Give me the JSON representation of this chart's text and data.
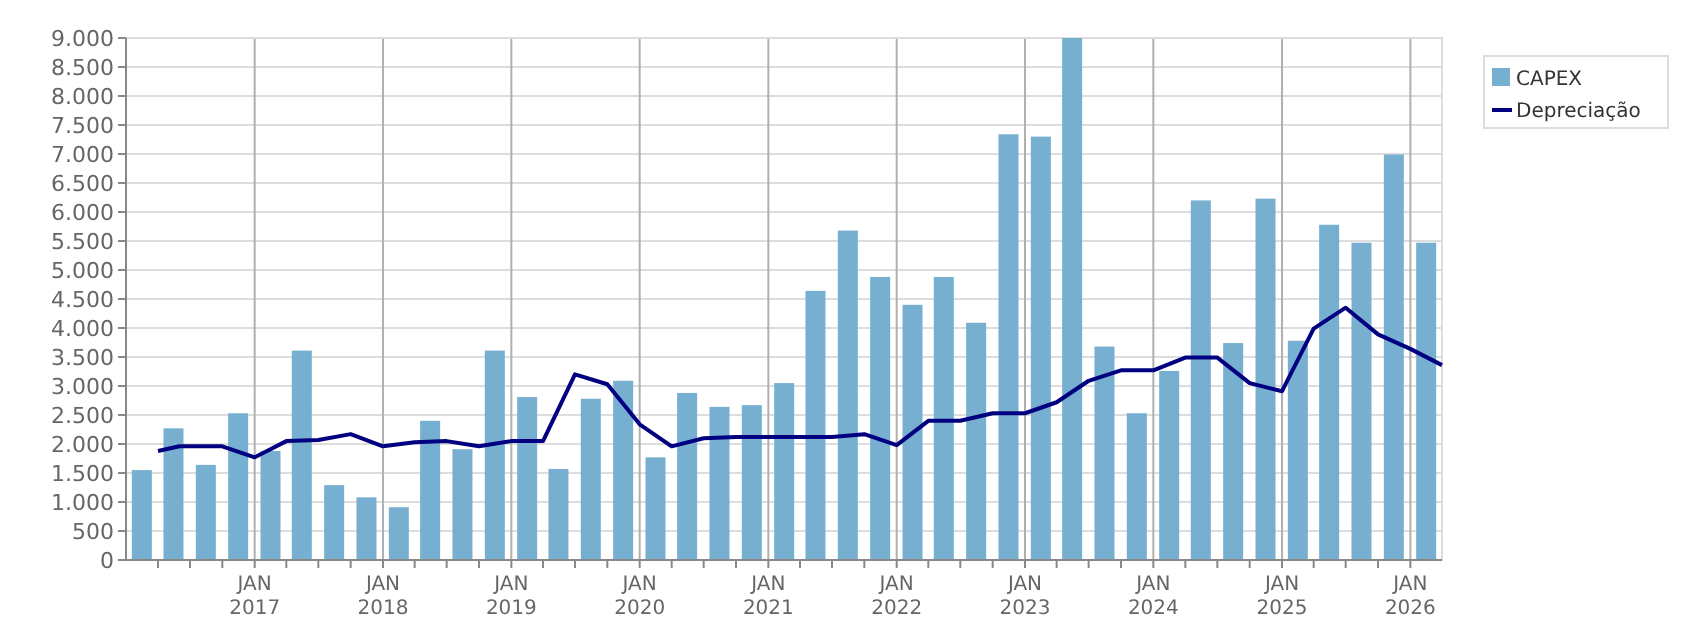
{
  "chart_data": {
    "type": "bar",
    "x": [
      "2016-02-15",
      "2016-05-15",
      "2016-08-15",
      "2016-11-15",
      "2017-02-15",
      "2017-05-15",
      "2017-08-15",
      "2017-11-15",
      "2018-02-15",
      "2018-05-15",
      "2018-08-15",
      "2018-11-15",
      "2019-02-15",
      "2019-05-15",
      "2019-08-15",
      "2019-11-15",
      "2020-02-15",
      "2020-05-15",
      "2020-08-15",
      "2020-11-15",
      "2021-02-15",
      "2021-05-15",
      "2021-08-15",
      "2021-11-15",
      "2022-02-15",
      "2022-05-15",
      "2022-08-15",
      "2022-11-15",
      "2023-02-15",
      "2023-05-15",
      "2023-08-15",
      "2023-11-15",
      "2024-02-15",
      "2024-05-15",
      "2024-08-15",
      "2024-11-15",
      "2025-02-15",
      "2025-05-15",
      "2025-08-15",
      "2025-11-15",
      "2026-02-15"
    ],
    "series": [
      {
        "name": "CAPEX",
        "color": "#77afd1",
        "values": [
          1550,
          2270,
          1640,
          2530,
          1880,
          3610,
          1290,
          1080,
          910,
          2400,
          1910,
          3610,
          2810,
          1570,
          2780,
          3090,
          1770,
          2880,
          2640,
          2670,
          3050,
          4640,
          5680,
          4880,
          4400,
          4880,
          4090,
          7340,
          7300,
          9000,
          3680,
          2530,
          3260,
          6200,
          3740,
          6230,
          3780,
          5780,
          5470,
          6990,
          5470
        ]
      },
      {
        "name": "Depreciação",
        "type": "line",
        "color": "#000080",
        "x": [
          "2016-04-01",
          "2016-06-01",
          "2016-10-01",
          "2017-01-01",
          "2017-04-01",
          "2017-07-01",
          "2017-10-01",
          "2018-01-01",
          "2018-04-01",
          "2018-07-01",
          "2018-10-01",
          "2019-01-01",
          "2019-04-01",
          "2019-07-01",
          "2019-10-01",
          "2020-01-01",
          "2020-04-01",
          "2020-07-01",
          "2020-10-01",
          "2021-01-01",
          "2021-04-01",
          "2021-07-01",
          "2021-10-01",
          "2022-01-01",
          "2022-04-01",
          "2022-07-01",
          "2022-10-01",
          "2023-01-01",
          "2023-04-01",
          "2023-07-01",
          "2023-10-01",
          "2024-01-01",
          "2024-04-01",
          "2024-07-01",
          "2024-10-01",
          "2025-01-01",
          "2025-04-01",
          "2025-07-01",
          "2025-10-01",
          "2026-01-01",
          "2026-04-01"
        ],
        "values": [
          1880,
          1960,
          1960,
          1770,
          2050,
          2070,
          2170,
          1960,
          2030,
          2050,
          1960,
          2050,
          2050,
          3200,
          3030,
          2340,
          1960,
          2100,
          2120,
          2120,
          2120,
          2120,
          2170,
          1980,
          2400,
          2400,
          2530,
          2530,
          2720,
          3090,
          3270,
          3270,
          3490,
          3490,
          3050,
          2910,
          3990,
          4350,
          3890,
          3640,
          3360
        ]
      }
    ],
    "xlim": [
      "2016-01-01",
      "2026-04-01"
    ],
    "xticks": [
      {
        "value": "2016-04-01",
        "label": null
      },
      {
        "value": "2016-07-01",
        "label": null
      },
      {
        "value": "2016-10-01",
        "label": null
      },
      {
        "value": "2017-01-01",
        "label": "JAN 2017"
      },
      {
        "value": "2017-04-01",
        "label": null
      },
      {
        "value": "2017-07-01",
        "label": null
      },
      {
        "value": "2017-10-01",
        "label": null
      },
      {
        "value": "2018-01-01",
        "label": "JAN 2018"
      },
      {
        "value": "2018-04-01",
        "label": null
      },
      {
        "value": "2018-07-01",
        "label": null
      },
      {
        "value": "2018-10-01",
        "label": null
      },
      {
        "value": "2019-01-01",
        "label": "JAN 2019"
      },
      {
        "value": "2019-04-01",
        "label": null
      },
      {
        "value": "2019-07-01",
        "label": null
      },
      {
        "value": "2019-10-01",
        "label": null
      },
      {
        "value": "2020-01-01",
        "label": "JAN 2020"
      },
      {
        "value": "2020-04-01",
        "label": null
      },
      {
        "value": "2020-07-01",
        "label": null
      },
      {
        "value": "2020-10-01",
        "label": null
      },
      {
        "value": "2021-01-01",
        "label": "JAN 2021"
      },
      {
        "value": "2021-04-01",
        "label": null
      },
      {
        "value": "2021-07-01",
        "label": null
      },
      {
        "value": "2021-10-01",
        "label": null
      },
      {
        "value": "2022-01-01",
        "label": "JAN 2022"
      },
      {
        "value": "2022-04-01",
        "label": null
      },
      {
        "value": "2022-07-01",
        "label": null
      },
      {
        "value": "2022-10-01",
        "label": null
      },
      {
        "value": "2023-01-01",
        "label": "JAN 2023"
      },
      {
        "value": "2023-04-01",
        "label": null
      },
      {
        "value": "2023-07-01",
        "label": null
      },
      {
        "value": "2023-10-01",
        "label": null
      },
      {
        "value": "2024-01-01",
        "label": "JAN 2024"
      },
      {
        "value": "2024-04-01",
        "label": null
      },
      {
        "value": "2024-07-01",
        "label": null
      },
      {
        "value": "2024-10-01",
        "label": null
      },
      {
        "value": "2025-01-01",
        "label": "JAN 2025"
      },
      {
        "value": "2025-04-01",
        "label": null
      },
      {
        "value": "2025-07-01",
        "label": null
      },
      {
        "value": "2025-10-01",
        "label": null
      },
      {
        "value": "2026-01-01",
        "label": "JAN 2026"
      }
    ],
    "ylim": [
      0,
      9000
    ],
    "yticks": [
      0,
      500,
      {
        "value": 1000,
        "label": "1.000"
      },
      {
        "value": 1500,
        "label": "1.500"
      },
      {
        "value": 2000,
        "label": "2.000"
      },
      {
        "value": 2500,
        "label": "2.500"
      },
      {
        "value": 3000,
        "label": "3.000"
      },
      {
        "value": 3500,
        "label": "3.500"
      },
      {
        "value": 4000,
        "label": "4.000"
      },
      {
        "value": 4500,
        "label": "4.500"
      },
      {
        "value": 5000,
        "label": "5.000"
      },
      {
        "value": 5500,
        "label": "5.500"
      },
      {
        "value": 6000,
        "label": "6.000"
      },
      {
        "value": 6500,
        "label": "6.500"
      },
      {
        "value": 7000,
        "label": "7.000"
      },
      {
        "value": 7500,
        "label": "7.500"
      },
      {
        "value": 8000,
        "label": "8.000"
      },
      {
        "value": 8500,
        "label": "8.500"
      },
      {
        "value": 9000,
        "label": "9.000"
      }
    ],
    "grid": true,
    "legend": "top right",
    "marker": "none",
    "line_style": "solid"
  }
}
